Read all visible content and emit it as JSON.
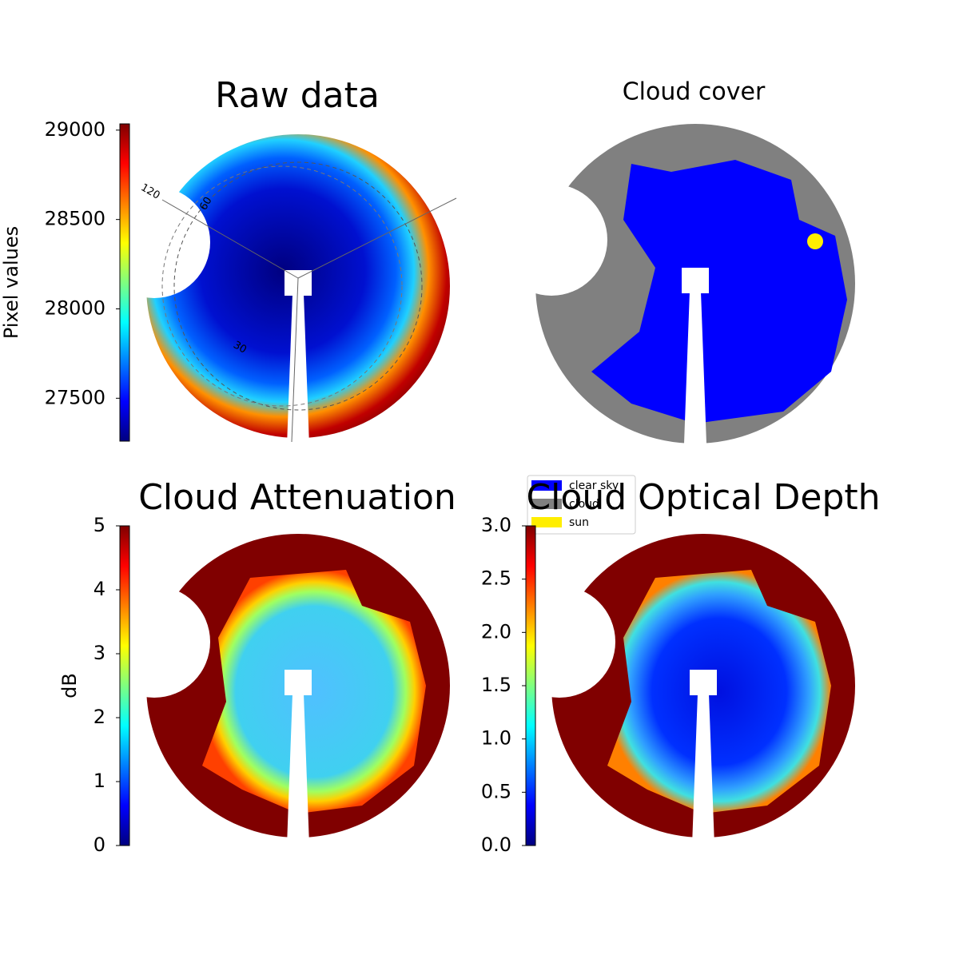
{
  "chart_data": [
    {
      "type": "image",
      "title": "Raw data",
      "colormap": "jet",
      "ylabel": "Pixel values",
      "ylim": [
        27260,
        29035
      ],
      "yticks": [
        27500,
        28000,
        28500,
        29000
      ],
      "annotations": [
        "120",
        "60",
        "30"
      ]
    },
    {
      "type": "image",
      "title": "Cloud cover",
      "legend": [
        {
          "name": "clear sky",
          "color": "#0000ff"
        },
        {
          "name": "cloud",
          "color": "#808080"
        },
        {
          "name": "sun",
          "color": "#ffee00"
        }
      ]
    },
    {
      "type": "image",
      "title": "Cloud Attenuation",
      "colormap": "jet",
      "ylabel": "dB",
      "ylim": [
        0,
        5
      ],
      "yticks": [
        0,
        1,
        2,
        3,
        4,
        5
      ]
    },
    {
      "type": "image",
      "title": "Cloud Optical Depth",
      "colormap": "jet",
      "ylim": [
        0,
        3
      ],
      "yticks": [
        {
          "value": 0,
          "label": "0.0"
        },
        {
          "value": 0.5,
          "label": "0.5"
        },
        {
          "value": 1,
          "label": "1.0"
        },
        {
          "value": 1.5,
          "label": "1.5"
        },
        {
          "value": 2,
          "label": "2.0"
        },
        {
          "value": 2.5,
          "label": "2.5"
        },
        {
          "value": 3,
          "label": "3.0"
        }
      ]
    }
  ]
}
